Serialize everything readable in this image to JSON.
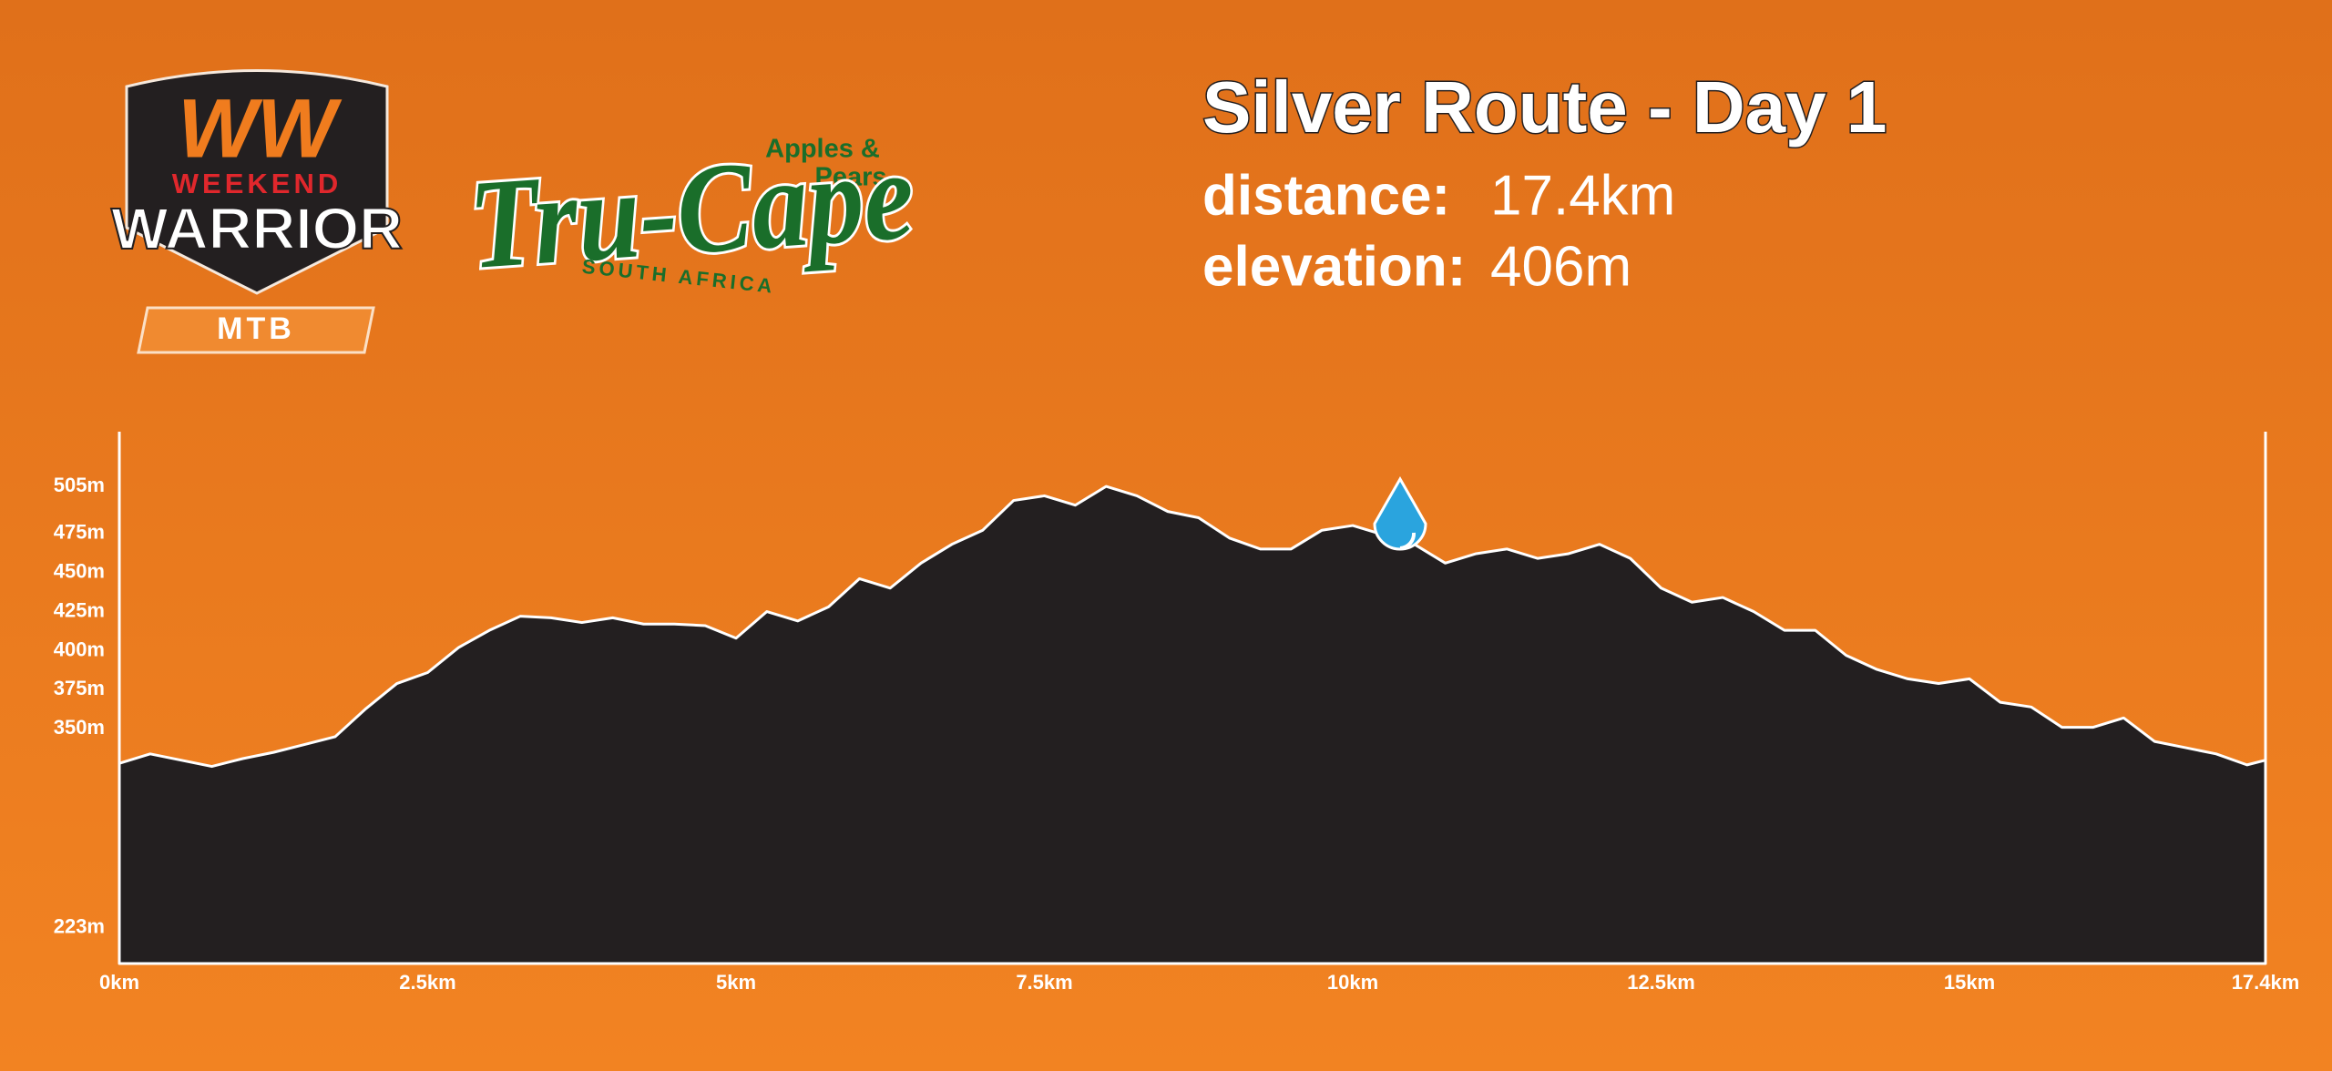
{
  "chart_data": {
    "type": "area",
    "color": "#231f20",
    "x": [
      0,
      0.25,
      0.5,
      0.75,
      1,
      1.25,
      1.5,
      1.75,
      2,
      2.25,
      2.5,
      2.75,
      3,
      3.25,
      3.5,
      3.75,
      4,
      4.25,
      4.5,
      4.75,
      5,
      5.25,
      5.5,
      5.75,
      6,
      6.25,
      6.5,
      6.75,
      7,
      7.25,
      7.5,
      7.75,
      8,
      8.25,
      8.5,
      8.75,
      9,
      9.25,
      9.5,
      9.75,
      10,
      10.25,
      10.5,
      10.75,
      11,
      11.25,
      11.5,
      11.75,
      12,
      12.25,
      12.5,
      12.75,
      13,
      13.25,
      13.5,
      13.75,
      14,
      14.25,
      14.5,
      14.75,
      15,
      15.25,
      15.5,
      15.75,
      16,
      16.25,
      16.5,
      16.75,
      17,
      17.25,
      17.4
    ],
    "values": [
      328,
      334,
      330,
      326,
      331,
      335,
      340,
      345,
      363,
      379,
      386,
      402,
      413,
      422,
      421,
      418,
      421,
      417,
      417,
      416,
      408,
      425,
      419,
      428,
      446,
      440,
      456,
      468,
      477,
      496,
      499,
      493,
      505,
      499,
      489,
      485,
      472,
      465,
      465,
      477,
      480,
      474,
      468,
      456,
      462,
      465,
      459,
      462,
      468,
      459,
      440,
      431,
      434,
      425,
      413,
      413,
      397,
      388,
      382,
      379,
      382,
      367,
      364,
      351,
      351,
      357,
      342,
      338,
      334,
      327,
      330
    ],
    "xlim": [
      0,
      17.4
    ],
    "xticks": [
      {
        "value": 0,
        "label": "0km"
      },
      {
        "value": 2.5,
        "label": "2.5km"
      },
      {
        "value": 5,
        "label": "5km"
      },
      {
        "value": 7.5,
        "label": "7.5km"
      },
      {
        "value": 10,
        "label": "10km"
      },
      {
        "value": 12.5,
        "label": "12.5km"
      },
      {
        "value": 15,
        "label": "15km"
      },
      {
        "value": 17.4,
        "label": "17.4km"
      }
    ],
    "ylim": [
      200,
      540
    ],
    "yticks": [
      {
        "value": 223,
        "label": "223m"
      },
      {
        "value": 350,
        "label": "350m"
      },
      {
        "value": 375,
        "label": "375m"
      },
      {
        "value": 400,
        "label": "400m"
      },
      {
        "value": 425,
        "label": "425m"
      },
      {
        "value": 450,
        "label": "450m"
      },
      {
        "value": 475,
        "label": "475m"
      },
      {
        "value": 505,
        "label": "505m"
      }
    ]
  },
  "route": {
    "title": "Silver Route - Day 1",
    "distance_label": "distance:",
    "distance": "17.4km",
    "elevation_label": "elevation:",
    "elevation": "406m"
  },
  "logos": {
    "ww": "WW",
    "weekend": "WEEKEND",
    "warrior": "WARRIOR",
    "mtb": "MTB",
    "apples": "Apples &",
    "pears": "Pears",
    "trucape": "Tru-Cape",
    "south_africa": "SOUTH AFRICA"
  }
}
